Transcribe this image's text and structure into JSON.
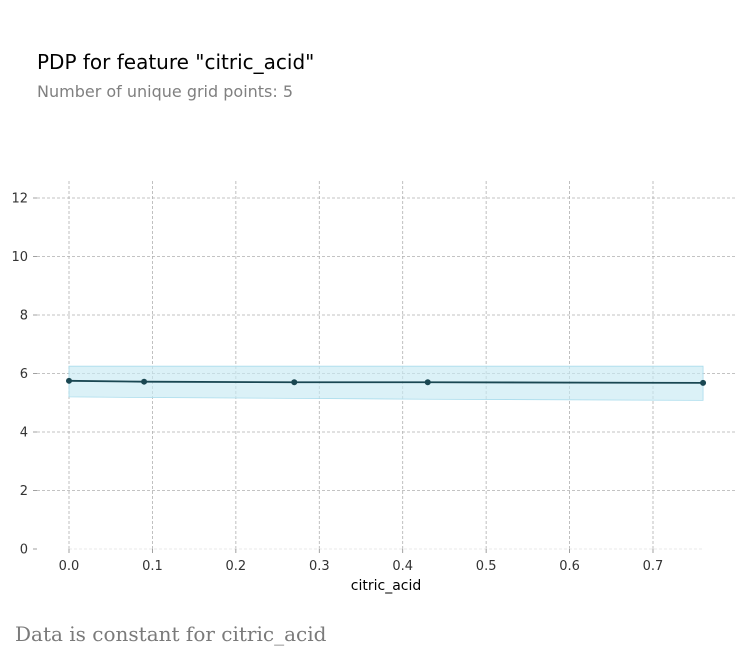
{
  "header": {
    "title": "PDP for feature \"citric_acid\"",
    "subtitle": "Number of unique grid points: 5"
  },
  "footer": {
    "note": "Data is constant for citric_acid"
  },
  "colors": {
    "line": "#1a4752",
    "band_fill": "#c8e9f3",
    "band_edge": "#a9dcec",
    "grid": "#b0b0b0"
  },
  "chart_data": {
    "type": "line",
    "title": "PDP for feature \"citric_acid\"",
    "subtitle": "Number of unique grid points: 5",
    "xlabel": "citric_acid",
    "ylabel": "",
    "xlim": [
      -0.04,
      0.8
    ],
    "ylim": [
      0,
      12.5
    ],
    "x_ticks": [
      0.0,
      0.1,
      0.2,
      0.3,
      0.4,
      0.5,
      0.6,
      0.7
    ],
    "x_tick_labels": [
      "0.0",
      "0.1",
      "0.2",
      "0.3",
      "0.4",
      "0.5",
      "0.6",
      "0.7"
    ],
    "y_ticks": [
      0,
      2,
      4,
      6,
      8,
      10,
      12
    ],
    "y_tick_labels": [
      "0",
      "2",
      "4",
      "6",
      "8",
      "10",
      "12"
    ],
    "grid": true,
    "series": [
      {
        "x": [
          0.0,
          0.09,
          0.27,
          0.43,
          0.76
        ],
        "y": [
          5.75,
          5.72,
          5.7,
          5.7,
          5.68
        ],
        "band_upper": [
          6.25,
          6.25,
          6.25,
          6.25,
          6.25
        ],
        "band_lower": [
          5.2,
          5.18,
          5.15,
          5.12,
          5.08
        ]
      }
    ]
  }
}
